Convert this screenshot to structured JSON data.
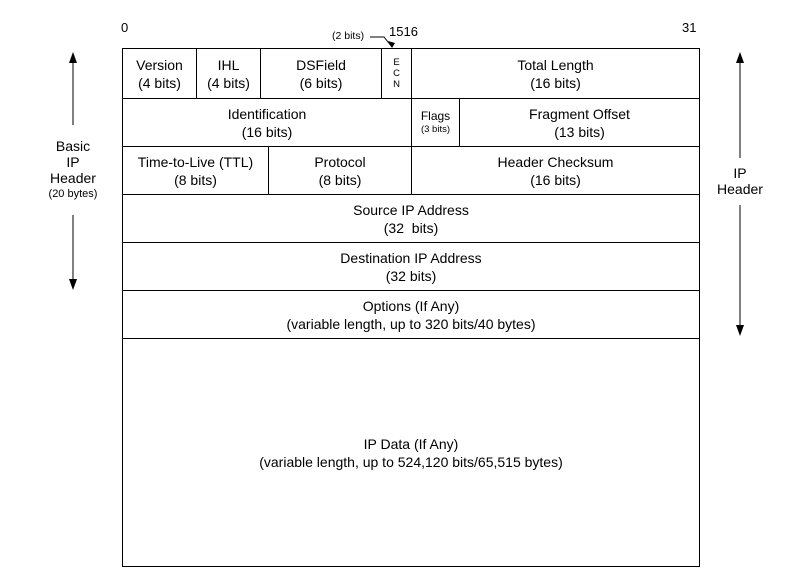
{
  "bit_positions": {
    "start": "0",
    "mid": "1516",
    "end": "31"
  },
  "ecn_width_note": "(2 bits)",
  "rows": {
    "r1": {
      "version": {
        "name": "Version",
        "size": "(4 bits)"
      },
      "ihl": {
        "name": "IHL",
        "size": "(4 bits)"
      },
      "dsfield": {
        "name": "DSField",
        "size": "(6 bits)"
      },
      "ecn": {
        "e": "E",
        "c": "C",
        "n": "N"
      },
      "total_length": {
        "name": "Total Length",
        "size": "(16 bits)"
      }
    },
    "r2": {
      "identification": {
        "name": "Identification",
        "size": "(16 bits)"
      },
      "flags": {
        "name": "Flags",
        "size": "(3 bits)"
      },
      "fragment_offset": {
        "name": "Fragment Offset",
        "size": "(13 bits)"
      }
    },
    "r3": {
      "ttl": {
        "name": "Time-to-Live (TTL)",
        "size": "(8 bits)"
      },
      "protocol": {
        "name": "Protocol",
        "size": "(8 bits)"
      },
      "checksum": {
        "name": "Header Checksum",
        "size": "(16 bits)"
      }
    },
    "r4": {
      "name": "Source IP Address",
      "size": "(32  bits)"
    },
    "r5": {
      "name": "Destination IP Address",
      "size": "(32 bits)"
    },
    "r6": {
      "name": "Options (If Any)",
      "size": "(variable length, up to 320 bits/40 bytes)"
    },
    "r7": {
      "name": "IP Data (If Any)",
      "size": "(variable length, up to 524,120 bits/65,515 bytes)"
    }
  },
  "left_label": {
    "l1": "Basic",
    "l2": "IP",
    "l3": "Header",
    "l4": "(20 bytes)"
  },
  "right_label": {
    "l1": "IP",
    "l2": "Header"
  }
}
